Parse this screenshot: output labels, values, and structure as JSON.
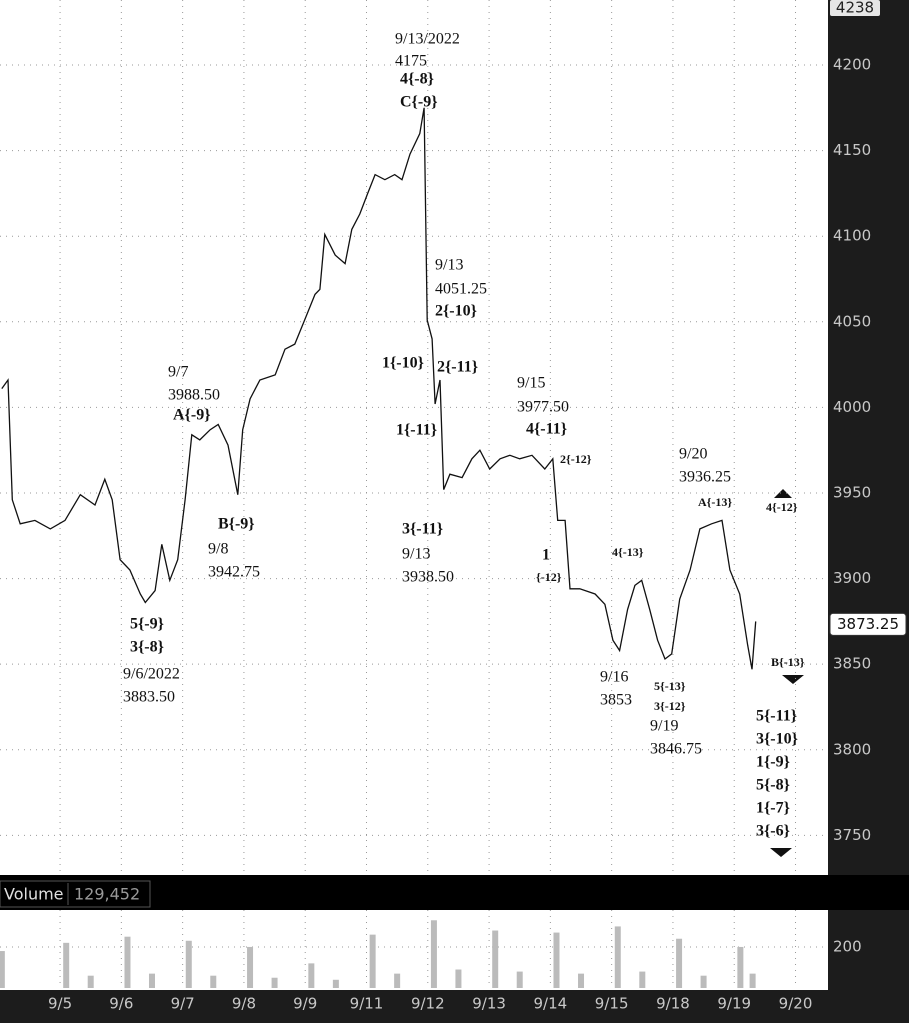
{
  "chart_data": {
    "type": "line",
    "categories": [
      "9/5",
      "9/6",
      "9/7",
      "9/8",
      "9/9",
      "9/11",
      "9/12",
      "9/13",
      "9/14",
      "9/15",
      "9/18",
      "9/19",
      "9/20"
    ],
    "xlim": [
      -0.98,
      12.53
    ],
    "ylim": [
      3728,
      4238
    ],
    "yticks": [
      3750,
      3800,
      3850,
      3900,
      3950,
      4000,
      4050,
      4100,
      4150,
      4200
    ],
    "grid": true,
    "series": [
      {
        "color": "#111111",
        "x": [
          -0.95,
          -0.85,
          -0.78,
          -0.65,
          -0.41,
          -0.16,
          0.08,
          0.33,
          0.57,
          0.73,
          0.85,
          0.98,
          1.14,
          1.31,
          1.39,
          1.55,
          1.66,
          1.79,
          1.92,
          2.04,
          2.15,
          2.28,
          2.45,
          2.58,
          2.74,
          2.9,
          2.98,
          3.1,
          3.26,
          3.51,
          3.67,
          3.83,
          3.99,
          4.16,
          4.24,
          4.32,
          4.49,
          4.65,
          4.76,
          4.89,
          5.02,
          5.14,
          5.3,
          5.46,
          5.58,
          5.71,
          5.87,
          5.94,
          5.99,
          6.07,
          6.12,
          6.2,
          6.26,
          6.36,
          6.56,
          6.72,
          6.85,
          7.01,
          7.18,
          7.34,
          7.5,
          7.7,
          7.91,
          8.04,
          8.12,
          8.24,
          8.32,
          8.48,
          8.73,
          8.89,
          9.02,
          9.13,
          9.26,
          9.38,
          9.49,
          9.62,
          9.75,
          9.87,
          9.98,
          10.11,
          10.28,
          10.44,
          10.63,
          10.8,
          10.93,
          11.09,
          11.22,
          11.29,
          11.35
        ],
        "values": [
          4011,
          4016,
          3946,
          3932,
          3934,
          3929,
          3934,
          3949,
          3943,
          3958,
          3946,
          3911,
          3905,
          3891,
          3886,
          3893,
          3920,
          3899,
          3911,
          3946,
          3984,
          3981,
          3987,
          3990,
          3978,
          3949,
          3987,
          4005,
          4016,
          4019,
          4034,
          4037,
          4051,
          4066,
          4069,
          4101,
          4089,
          4084,
          4104,
          4113,
          4125,
          4136,
          4133,
          4136,
          4133,
          4148,
          4160,
          4175,
          4051,
          4040,
          4002,
          4016,
          3952,
          3961,
          3959,
          3970,
          3975,
          3964,
          3970,
          3972,
          3970,
          3972,
          3964,
          3970,
          3934,
          3934,
          3894,
          3894,
          3891,
          3885,
          3864,
          3858,
          3882,
          3896,
          3899,
          3882,
          3864,
          3853,
          3856,
          3888,
          3905,
          3929,
          3932,
          3934,
          3905,
          3891,
          3861,
          3847,
          3875
        ]
      }
    ],
    "last": 3873.25,
    "annotations": [
      "9/13/2022",
      "4175",
      "4{-8}",
      "C{-9}",
      "9/13",
      "4051.25",
      "2{-10}",
      "1{-10}",
      "2{-11}",
      "9/7",
      "3988.50",
      "A{-9}",
      "1{-11}",
      "9/15",
      "3977.50",
      "4{-11}",
      "2{-12}",
      "9/20",
      "3936.25",
      "A{-13}",
      "4{-12}",
      "B{-9}",
      "9/8",
      "3942.75",
      "3{-11}",
      "9/13",
      "3938.50",
      "1",
      "{-12}",
      "4{-13}",
      "5{-9}",
      "3{-8}",
      "9/6/2022",
      "3883.50",
      "9/16",
      "3853",
      "5{-13}",
      "3{-12}",
      "9/19",
      "3846.75",
      "B{-13}",
      "5{-11}",
      "3{-10}",
      "1{-9}",
      "5{-8}",
      "1{-7}",
      "3{-6}"
    ],
    "volume": {
      "label": "Volume",
      "last": "129,452",
      "color": "#bbbbbb",
      "ylim": [
        0,
        380
      ],
      "yticks": [
        200
      ],
      "x": [
        -0.95,
        0.1,
        0.5,
        1.1,
        1.5,
        2.1,
        2.5,
        3.1,
        3.5,
        4.1,
        4.5,
        5.1,
        5.5,
        6.1,
        6.5,
        7.1,
        7.5,
        8.1,
        8.5,
        9.1,
        9.5,
        10.1,
        10.5,
        11.1,
        11.3
      ],
      "values": [
        180,
        220,
        60,
        250,
        70,
        230,
        60,
        200,
        50,
        120,
        40,
        260,
        70,
        330,
        90,
        280,
        80,
        270,
        70,
        300,
        80,
        240,
        60,
        200,
        70
      ]
    }
  }
}
